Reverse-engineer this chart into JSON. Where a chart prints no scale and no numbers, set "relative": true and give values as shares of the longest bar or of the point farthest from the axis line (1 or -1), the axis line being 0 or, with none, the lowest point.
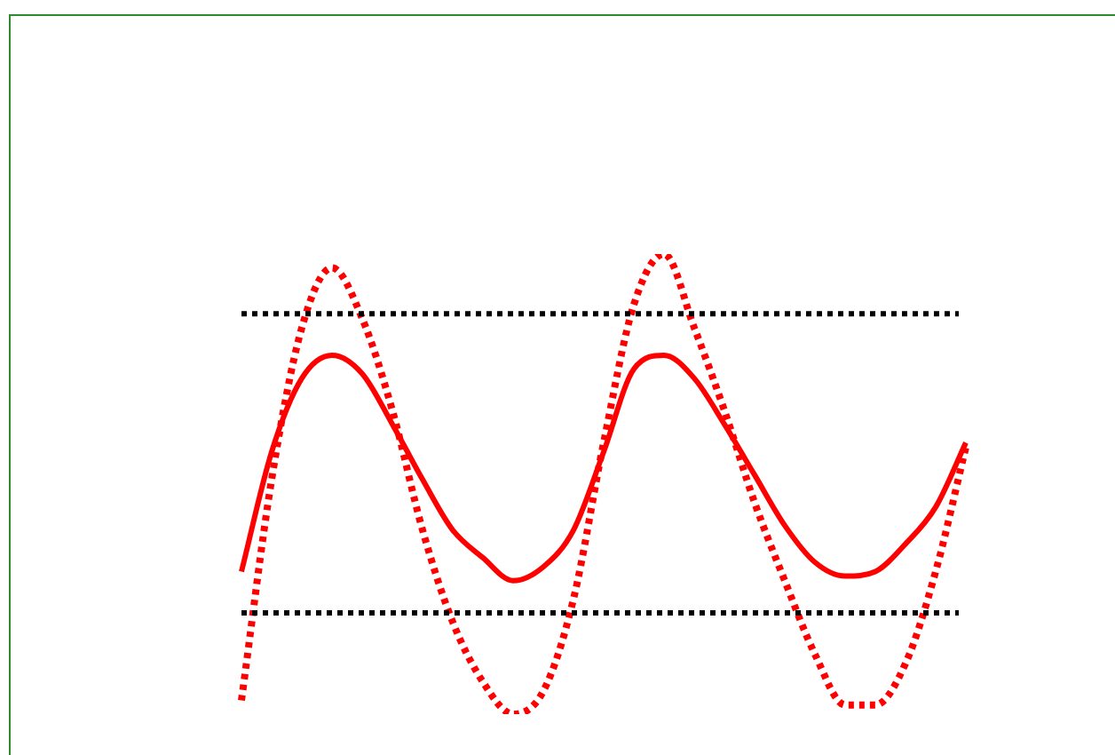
{
  "chart_data": {
    "type": "line",
    "relative": true,
    "marker": "none",
    "legend": false,
    "categories": [
      null,
      null,
      null,
      null,
      null,
      null,
      null,
      null,
      null,
      null,
      null,
      null,
      null,
      null,
      null,
      null,
      null,
      null,
      null,
      null,
      null,
      null,
      null,
      null,
      null
    ],
    "series": [
      {
        "color": "#ff0000",
        "line_style": "dotted",
        "values": [
          0.03,
          0.51,
          0.84,
          0.97,
          0.86,
          0.66,
          0.4,
          0.2,
          0.07,
          0,
          0.05,
          0.25,
          0.59,
          0.89,
          1,
          0.84,
          0.66,
          0.46,
          0.29,
          0.13,
          0.02,
          0.02,
          0.11,
          0.31,
          0.58
        ]
      },
      {
        "color": "#ff0000",
        "line_style": "solid",
        "values": [
          0.31,
          0.57,
          0.73,
          0.78,
          0.74,
          0.63,
          0.51,
          0.4,
          0.34,
          0.29,
          0.32,
          0.4,
          0.57,
          0.75,
          0.78,
          0.73,
          0.63,
          0.52,
          0.41,
          0.33,
          0.3,
          0.31,
          0.37,
          0.45,
          0.59
        ]
      }
    ],
    "ref_lines": [
      {
        "axis": "y",
        "value": 0.87,
        "color": "#000000",
        "line_style": "dotted"
      },
      {
        "axis": "y",
        "value": 0.22,
        "color": "#000000",
        "line_style": "dotted"
      }
    ]
  }
}
